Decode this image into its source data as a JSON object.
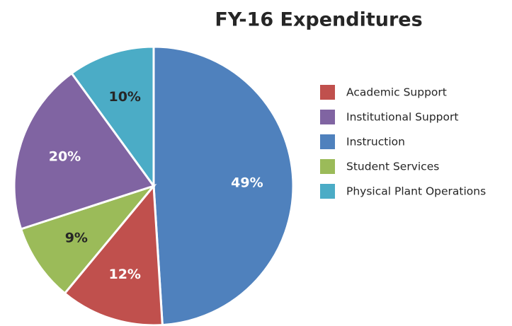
{
  "chart_data": {
    "type": "pie",
    "title": "FY-16 Expenditures",
    "categories": [
      "Academic Support",
      "Institutional Support",
      "Instruction",
      "Student Services",
      "Physical Plant Operations"
    ],
    "values": [
      12,
      20,
      49,
      9,
      10
    ],
    "value_labels": [
      "12%",
      "20%",
      "49%",
      "9%",
      "10%"
    ],
    "colors": [
      "#c0504d",
      "#8064a2",
      "#4f81bd",
      "#9bbb59",
      "#4bacc6"
    ],
    "label_colors": [
      "#ffffff",
      "#ffffff",
      "#ffffff",
      "#262626",
      "#262626"
    ],
    "legend": "right"
  }
}
